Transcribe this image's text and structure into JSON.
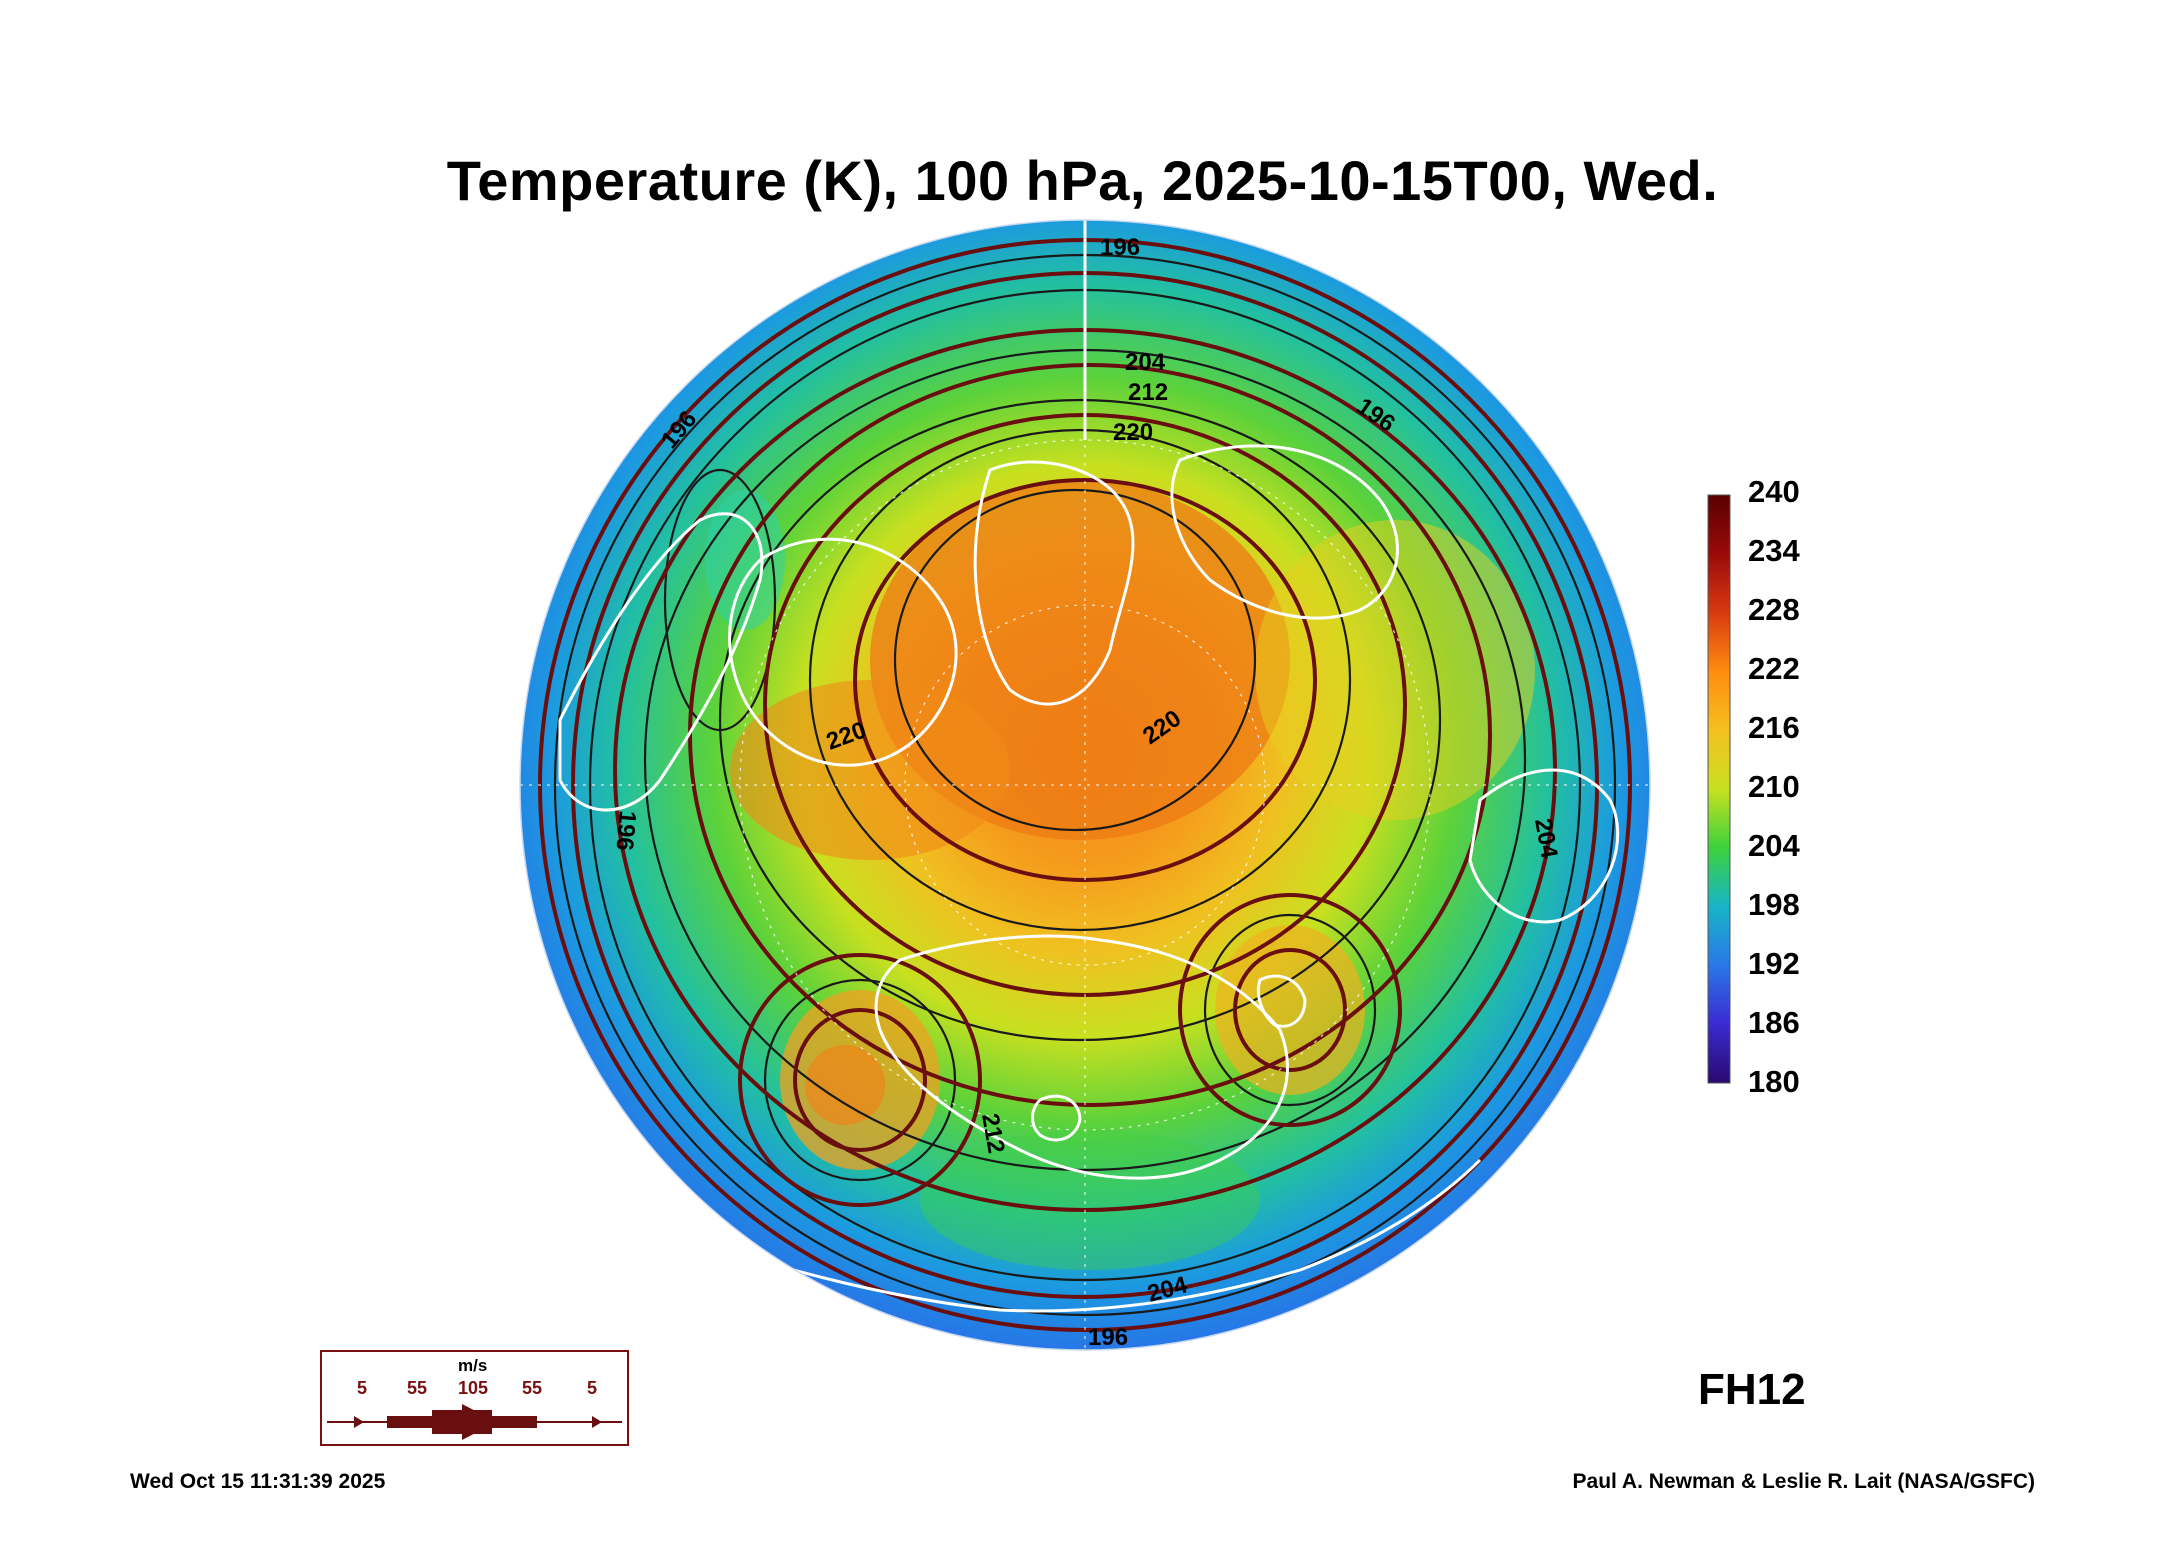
{
  "title": "Temperature (K), 100 hPa, 2025-10-15T00, Wed.",
  "colorbar": {
    "ticks": [
      "240",
      "234",
      "228",
      "222",
      "216",
      "210",
      "204",
      "198",
      "192",
      "186",
      "180"
    ],
    "colors": [
      "#5a0000",
      "#9a0a0a",
      "#d83a10",
      "#ff8c10",
      "#f5c020",
      "#c8e020",
      "#3cd23c",
      "#18b4c8",
      "#2a78e8",
      "#3a2ad0",
      "#2a0a70"
    ]
  },
  "contour_labels": [
    "196",
    "204",
    "212",
    "220",
    "196",
    "196",
    "220",
    "220",
    "212",
    "204",
    "196",
    "204",
    "196"
  ],
  "wind_legend": {
    "unit": "m/s",
    "values": [
      "5",
      "55",
      "105",
      "55",
      "5"
    ]
  },
  "forecast_hour": "FH12",
  "footer": {
    "timestamp": "Wed Oct 15 11:31:39 2025",
    "credit": "Paul A. Newman & Leslie R. Lait (NASA/GSFC)"
  },
  "colors": {
    "streamline": "#6a0f0f",
    "coastline": "#ffffff",
    "contour": "#1a1a1a"
  }
}
